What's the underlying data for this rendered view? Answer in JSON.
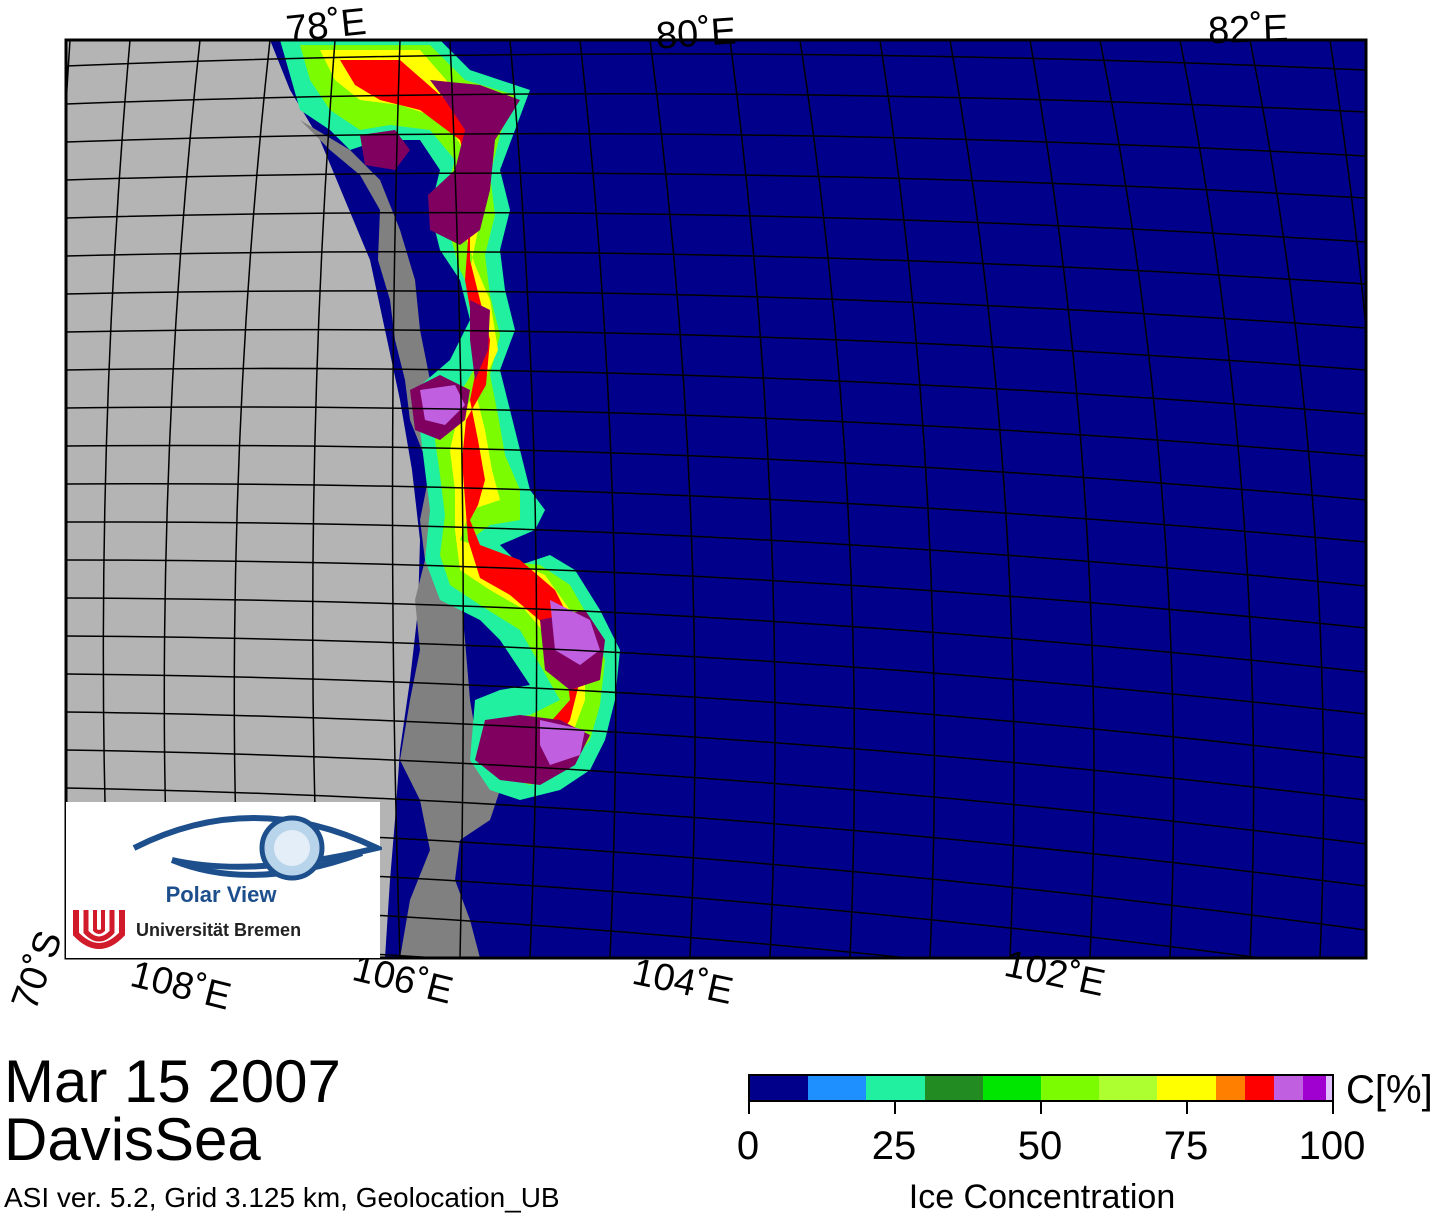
{
  "map": {
    "lon_labels_top": [
      "78˚E",
      "80˚E",
      "82˚E"
    ],
    "lon_labels_bottom": [
      "108˚E",
      "106˚E",
      "104˚E",
      "102˚E"
    ],
    "lat_label": "70˚S",
    "colors": {
      "ocean": "#00008b",
      "land": "#b4b4b4",
      "ice_shelf": "#808080",
      "grid": "#000000"
    }
  },
  "caption": {
    "date": "Mar 15 2007",
    "region": "DavisSea",
    "info": "ASI ver. 5.2,  Grid 3.125 km, Geolocation_UB"
  },
  "colorbar": {
    "unit": "C[%]",
    "title": "Ice Concentration",
    "ticks": [
      "0",
      "25",
      "50",
      "75",
      "100"
    ],
    "tick_values": [
      0,
      25,
      50,
      75,
      100
    ],
    "segments": [
      "#00008b",
      "#1e90ff",
      "#20f0a0",
      "#228b22",
      "#00e600",
      "#7cfc00",
      "#adff2f",
      "#ffff00",
      "#ff8000",
      "#ff0000",
      "#c060e0",
      "#a000d0",
      "#e0c0ff"
    ],
    "segment_ranges": [
      [
        0,
        10
      ],
      [
        10,
        20
      ],
      [
        20,
        30
      ],
      [
        30,
        40
      ],
      [
        40,
        50
      ],
      [
        50,
        60
      ],
      [
        60,
        70
      ],
      [
        70,
        80
      ],
      [
        80,
        85
      ],
      [
        85,
        90
      ],
      [
        90,
        95
      ],
      [
        95,
        99
      ],
      [
        99,
        100
      ]
    ]
  },
  "logo": {
    "title": "Polar View",
    "subtitle": "Universität Bremen"
  }
}
